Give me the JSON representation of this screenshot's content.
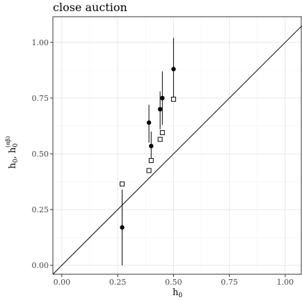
{
  "chart_data": {
    "type": "scatter",
    "title": "close auction",
    "xlabel": "h",
    "xlabel_sub": "0",
    "ylabel_parts": {
      "first": "h",
      "first_sub": "0",
      "sep": ",",
      "second": "h",
      "second_sub": "0",
      "second_sup": "(αβ)"
    },
    "xlim": [
      -0.04,
      1.075
    ],
    "ylim": [
      -0.04,
      1.115
    ],
    "xticks": [
      0.0,
      0.25,
      0.5,
      0.75,
      1.0
    ],
    "xtick_labels": [
      "0.00",
      "0.25",
      "0.50",
      "0.75",
      "1.00"
    ],
    "yticks": [
      0.0,
      0.25,
      0.5,
      0.75,
      1.0
    ],
    "ytick_labels": [
      "0.00",
      "0.25",
      "0.50",
      "0.75",
      "1.00"
    ],
    "grid": true,
    "reference_line": "y = x",
    "series": [
      {
        "marker": "filled-circle",
        "points": [
          {
            "x": 0.27,
            "y": 0.17,
            "ylow": 0.0,
            "yhigh": 0.34
          },
          {
            "x": 0.39,
            "y": 0.64,
            "ylow": 0.55,
            "yhigh": 0.72
          },
          {
            "x": 0.4,
            "y": 0.535,
            "ylow": 0.47,
            "yhigh": 0.6
          },
          {
            "x": 0.44,
            "y": 0.7,
            "ylow": 0.61,
            "yhigh": 0.78
          },
          {
            "x": 0.45,
            "y": 0.75,
            "ylow": 0.63,
            "yhigh": 0.87
          },
          {
            "x": 0.5,
            "y": 0.88,
            "ylow": 0.74,
            "yhigh": 1.02
          }
        ]
      },
      {
        "marker": "open-square",
        "points": [
          {
            "x": 0.27,
            "y": 0.365
          },
          {
            "x": 0.39,
            "y": 0.425
          },
          {
            "x": 0.4,
            "y": 0.47
          },
          {
            "x": 0.44,
            "y": 0.565
          },
          {
            "x": 0.45,
            "y": 0.595
          },
          {
            "x": 0.5,
            "y": 0.745
          }
        ]
      }
    ]
  }
}
